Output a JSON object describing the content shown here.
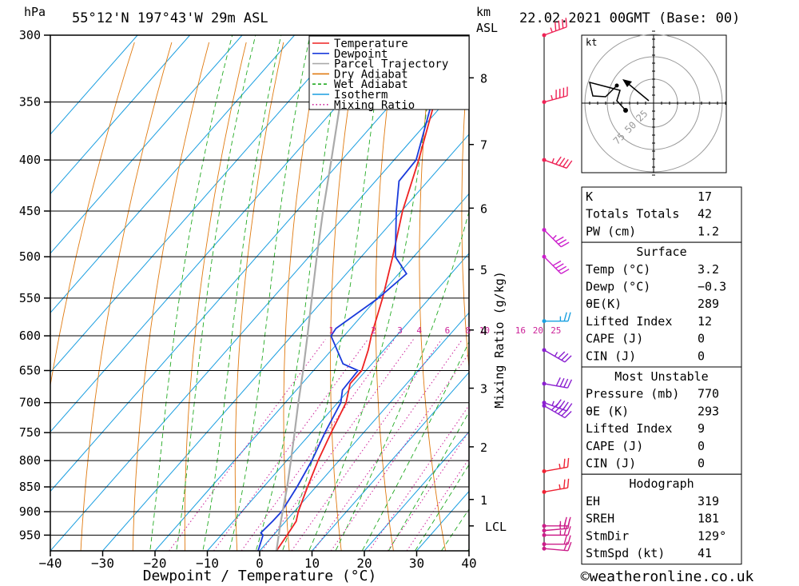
{
  "header": {
    "location": "55°12'N  197°43'W  29m  ASL",
    "datetime": "22.02.2021  00GMT  (Base: 00)",
    "left_unit": "hPa",
    "right_unit_top": "km",
    "right_unit_bottom": "ASL"
  },
  "chart_data": {
    "type": "line",
    "subtype": "skew-T log-P",
    "xlabel": "Dewpoint / Temperature (°C)",
    "ylabel_left": "hPa",
    "ylabel_right": "Mixing Ratio (g/kg)",
    "xlim": [
      -40,
      40
    ],
    "ylim": [
      985,
      300
    ],
    "x_ticks": [
      "−40",
      "−30",
      "−20",
      "−10",
      "0",
      "10",
      "20",
      "30",
      "40"
    ],
    "x_tick_values": [
      -40,
      -30,
      -20,
      -10,
      0,
      10,
      20,
      30,
      40
    ],
    "pressure_levels": [
      300,
      350,
      400,
      450,
      500,
      550,
      600,
      650,
      700,
      750,
      800,
      850,
      900,
      950
    ],
    "pressure_labels": [
      "300",
      "350",
      "400",
      "450",
      "500",
      "550",
      "600",
      "650",
      "700",
      "750",
      "800",
      "850",
      "900",
      "950"
    ],
    "km_ticks": [
      {
        "label": "1",
        "p": 875
      },
      {
        "label": "2",
        "p": 775
      },
      {
        "label": "3",
        "p": 677
      },
      {
        "label": "4",
        "p": 592
      },
      {
        "label": "5",
        "p": 515
      },
      {
        "label": "6",
        "p": 447
      },
      {
        "label": "7",
        "p": 386
      },
      {
        "label": "8",
        "p": 331
      }
    ],
    "lcl": {
      "label": "LCL",
      "p": 930
    },
    "mixing_ratio_labels": [
      "1",
      "2",
      "3",
      "4",
      "6",
      "8",
      "10",
      "16",
      "20",
      "25"
    ],
    "mixing_ratio_values": [
      1,
      2,
      3,
      4,
      6,
      8,
      10,
      16,
      20,
      25
    ],
    "grid": true,
    "legend": {
      "position": "top-right",
      "entries": [
        {
          "name": "Temperature",
          "color": "#ee2222",
          "style": "solid"
        },
        {
          "name": "Dewpoint",
          "color": "#1a3adb",
          "style": "solid"
        },
        {
          "name": "Parcel Trajectory",
          "color": "#aaaaaa",
          "style": "solid"
        },
        {
          "name": "Dry Adiabat",
          "color": "#e07a10",
          "style": "solid"
        },
        {
          "name": "Wet Adiabat",
          "color": "#22aa22",
          "style": "dashed"
        },
        {
          "name": "Isotherm",
          "color": "#1a9ee0",
          "style": "solid"
        },
        {
          "name": "Mixing Ratio",
          "color": "#cc2299",
          "style": "dotted"
        }
      ]
    },
    "series": [
      {
        "name": "Temperature",
        "color": "#ee2222",
        "points": [
          [
            985,
            3.2
          ],
          [
            950,
            2.6
          ],
          [
            920,
            2.0
          ],
          [
            900,
            0.8
          ],
          [
            850,
            -1.6
          ],
          [
            800,
            -4.0
          ],
          [
            750,
            -6.2
          ],
          [
            700,
            -8.4
          ],
          [
            670,
            -10.8
          ],
          [
            650,
            -10.8
          ],
          [
            620,
            -13.0
          ],
          [
            600,
            -14.8
          ],
          [
            550,
            -19.0
          ],
          [
            500,
            -24.0
          ],
          [
            450,
            -29.8
          ],
          [
            400,
            -35.3
          ],
          [
            350,
            -42.0
          ],
          [
            330,
            -45.5
          ],
          [
            300,
            -49.5
          ]
        ]
      },
      {
        "name": "Dewpoint",
        "color": "#1a3adb",
        "points": [
          [
            985,
            -0.3
          ],
          [
            950,
            -2.0
          ],
          [
            945,
            -2.8
          ],
          [
            920,
            -2.5
          ],
          [
            900,
            -2.4
          ],
          [
            850,
            -3.6
          ],
          [
            800,
            -5.2
          ],
          [
            750,
            -7.4
          ],
          [
            700,
            -9.4
          ],
          [
            680,
            -11.2
          ],
          [
            650,
            -11.5
          ],
          [
            640,
            -15.5
          ],
          [
            600,
            -22.5
          ],
          [
            590,
            -22.8
          ],
          [
            550,
            -19.8
          ],
          [
            520,
            -18.5
          ],
          [
            500,
            -23.5
          ],
          [
            450,
            -31.0
          ],
          [
            420,
            -35.5
          ],
          [
            400,
            -35.8
          ],
          [
            350,
            -42.5
          ],
          [
            335,
            -48.0
          ],
          [
            320,
            -49.3
          ],
          [
            300,
            -52.5
          ]
        ]
      },
      {
        "name": "Parcel Trajectory",
        "color": "#aaaaaa",
        "points": [
          [
            985,
            3.2
          ],
          [
            930,
            -0.3
          ],
          [
            900,
            -2.2
          ],
          [
            850,
            -5.5
          ],
          [
            800,
            -9.2
          ],
          [
            750,
            -13.2
          ],
          [
            700,
            -17.5
          ],
          [
            650,
            -22.0
          ],
          [
            600,
            -27.0
          ],
          [
            550,
            -32.5
          ],
          [
            500,
            -38.5
          ],
          [
            450,
            -45.0
          ],
          [
            400,
            -52.0
          ],
          [
            350,
            -60.0
          ],
          [
            300,
            -69.0
          ]
        ]
      }
    ],
    "wind_barbs": [
      {
        "p": 300,
        "dir": 250,
        "spd": 45
      },
      {
        "p": 350,
        "dir": 255,
        "spd": 45
      },
      {
        "p": 400,
        "dir": 290,
        "spd": 45
      },
      {
        "p": 470,
        "dir": 315,
        "spd": 35
      },
      {
        "p": 500,
        "dir": 315,
        "spd": 40
      },
      {
        "p": 580,
        "dir": 270,
        "spd": 25
      },
      {
        "p": 620,
        "dir": 300,
        "spd": 35
      },
      {
        "p": 670,
        "dir": 280,
        "spd": 40
      },
      {
        "p": 700,
        "dir": 290,
        "spd": 45
      },
      {
        "p": 705,
        "dir": 300,
        "spd": 50
      },
      {
        "p": 820,
        "dir": 260,
        "spd": 25
      },
      {
        "p": 860,
        "dir": 260,
        "spd": 25
      },
      {
        "p": 930,
        "dir": 270,
        "spd": 25
      },
      {
        "p": 940,
        "dir": 265,
        "spd": 25
      },
      {
        "p": 950,
        "dir": 270,
        "spd": 25
      },
      {
        "p": 970,
        "dir": 270,
        "spd": 20
      },
      {
        "p": 980,
        "dir": 275,
        "spd": 20
      }
    ],
    "hodograph": {
      "unit_label": "kt",
      "ring_labels": [
        "25",
        "50",
        "75"
      ],
      "ring_values": [
        25,
        50,
        75
      ]
    }
  },
  "indices": {
    "general": [
      {
        "label": "K",
        "value": "17"
      },
      {
        "label": "Totals Totals",
        "value": "42"
      },
      {
        "label": "PW (cm)",
        "value": "1.2"
      }
    ],
    "surface_title": "Surface",
    "surface": [
      {
        "label": "Temp (°C)",
        "value": "3.2"
      },
      {
        "label": "Dewp (°C)",
        "value": "−0.3"
      },
      {
        "label": "θE(K)",
        "value": "289"
      },
      {
        "label": "Lifted Index",
        "value": "12"
      },
      {
        "label": "CAPE (J)",
        "value": "0"
      },
      {
        "label": "CIN (J)",
        "value": "0"
      }
    ],
    "unstable_title": "Most Unstable",
    "unstable": [
      {
        "label": "Pressure (mb)",
        "value": "770"
      },
      {
        "label": "θE (K)",
        "value": "293"
      },
      {
        "label": "Lifted Index",
        "value": "9"
      },
      {
        "label": "CAPE (J)",
        "value": "0"
      },
      {
        "label": "CIN (J)",
        "value": "0"
      }
    ],
    "hodo_title": "Hodograph",
    "hodo": [
      {
        "label": "EH",
        "value": "319"
      },
      {
        "label": "SREH",
        "value": "181"
      },
      {
        "label": "StmDir",
        "value": "129°"
      },
      {
        "label": "StmSpd (kt)",
        "value": "41"
      }
    ]
  },
  "footer": {
    "credit": "©weatheronline.co.uk"
  }
}
